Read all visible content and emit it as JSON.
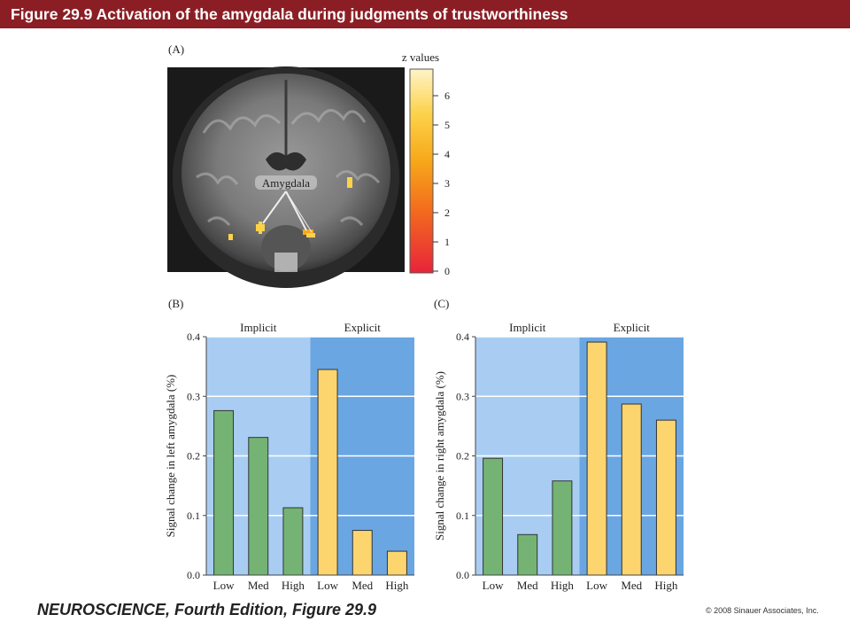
{
  "header": {
    "title": "Figure 29.9  Activation of the amygdala during judgments of trustworthiness"
  },
  "panels": {
    "a_label": "(A)",
    "b_label": "(B)",
    "c_label": "(C)"
  },
  "brain_image": {
    "annotation": "Amygdala",
    "colorbar": {
      "title": "z values",
      "ticks": [
        "0",
        "1",
        "2",
        "3",
        "4",
        "5",
        "6"
      ],
      "colors": [
        "#e8243a",
        "#f26a1e",
        "#f7a81a",
        "#fcd24a",
        "#fff3c8"
      ]
    }
  },
  "chart_data": [
    {
      "type": "bar",
      "ylabel": "Signal change in left amygdala (%)",
      "ylim": [
        0,
        0.4
      ],
      "yticks": [
        "0.0",
        "0.1",
        "0.2",
        "0.3",
        "0.4"
      ],
      "groups": [
        {
          "name": "Implicit",
          "categories": [
            "Low",
            "Med",
            "High"
          ],
          "values": [
            0.276,
            0.231,
            0.113
          ],
          "bar_color": "#74b374",
          "bg_color": "#a9cdf2"
        },
        {
          "name": "Explicit",
          "categories": [
            "Low",
            "Med",
            "High"
          ],
          "values": [
            0.345,
            0.075,
            0.04
          ],
          "bar_color": "#fdd56f",
          "bg_color": "#6aa6e2"
        }
      ],
      "grid": true
    },
    {
      "type": "bar",
      "ylabel": "Signal change in right amygdala (%)",
      "ylim": [
        0,
        0.4
      ],
      "yticks": [
        "0.0",
        "0.1",
        "0.2",
        "0.3",
        "0.4"
      ],
      "groups": [
        {
          "name": "Implicit",
          "categories": [
            "Low",
            "Med",
            "High"
          ],
          "values": [
            0.196,
            0.068,
            0.158
          ],
          "bar_color": "#74b374",
          "bg_color": "#a9cdf2"
        },
        {
          "name": "Explicit",
          "categories": [
            "Low",
            "Med",
            "High"
          ],
          "values": [
            0.391,
            0.287,
            0.26
          ],
          "bar_color": "#fdd56f",
          "bg_color": "#6aa6e2"
        }
      ],
      "grid": true
    }
  ],
  "footer": {
    "book": "NEUROSCIENCE, Fourth Edition, Figure 29.9",
    "copyright": "© 2008 Sinauer Associates, Inc."
  }
}
